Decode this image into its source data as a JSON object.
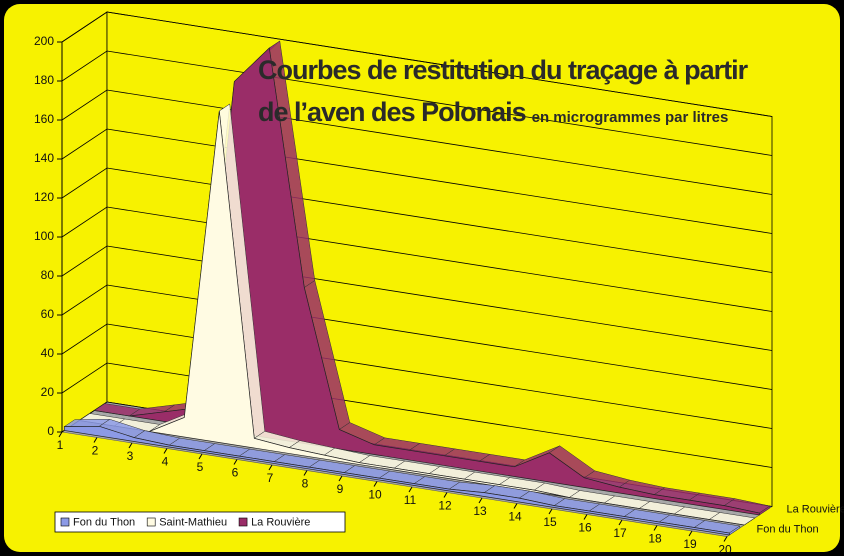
{
  "chart_data": {
    "type": "area3d",
    "title": [
      "Courbes de restitution du traçage à partir",
      "de l’aven des Polonais"
    ],
    "subtitle": "en microgrammes par litres",
    "categories": [
      1,
      2,
      3,
      4,
      5,
      6,
      7,
      8,
      9,
      10,
      11,
      12,
      13,
      14,
      15,
      16,
      17,
      18,
      19,
      20
    ],
    "series": [
      {
        "name": "Fon du Thon",
        "color": "#8c9ae6",
        "values": [
          2,
          5,
          2,
          1,
          1,
          1,
          1,
          1,
          1,
          1,
          1,
          1,
          2,
          2,
          1,
          1,
          1,
          1,
          1,
          1
        ]
      },
      {
        "name": "Saint-Mathieu",
        "color": "#fffbe3",
        "values": [
          0,
          0,
          0,
          10,
          170,
          5,
          3,
          2,
          1,
          1,
          1,
          1,
          1,
          1,
          0,
          0,
          0,
          0,
          0,
          0
        ]
      },
      {
        "name": "La Rouvière",
        "color": "#9a2d68",
        "values": [
          0,
          0,
          5,
          10,
          180,
          200,
          80,
          10,
          5,
          5,
          5,
          5,
          5,
          15,
          5,
          3,
          2,
          2,
          2,
          1
        ]
      }
    ],
    "ylim": [
      0,
      200
    ],
    "yticks": [
      0,
      20,
      40,
      60,
      80,
      100,
      120,
      140,
      160,
      180,
      200
    ],
    "grid": true,
    "legend": "bottom-left",
    "background": "#f7f200"
  }
}
